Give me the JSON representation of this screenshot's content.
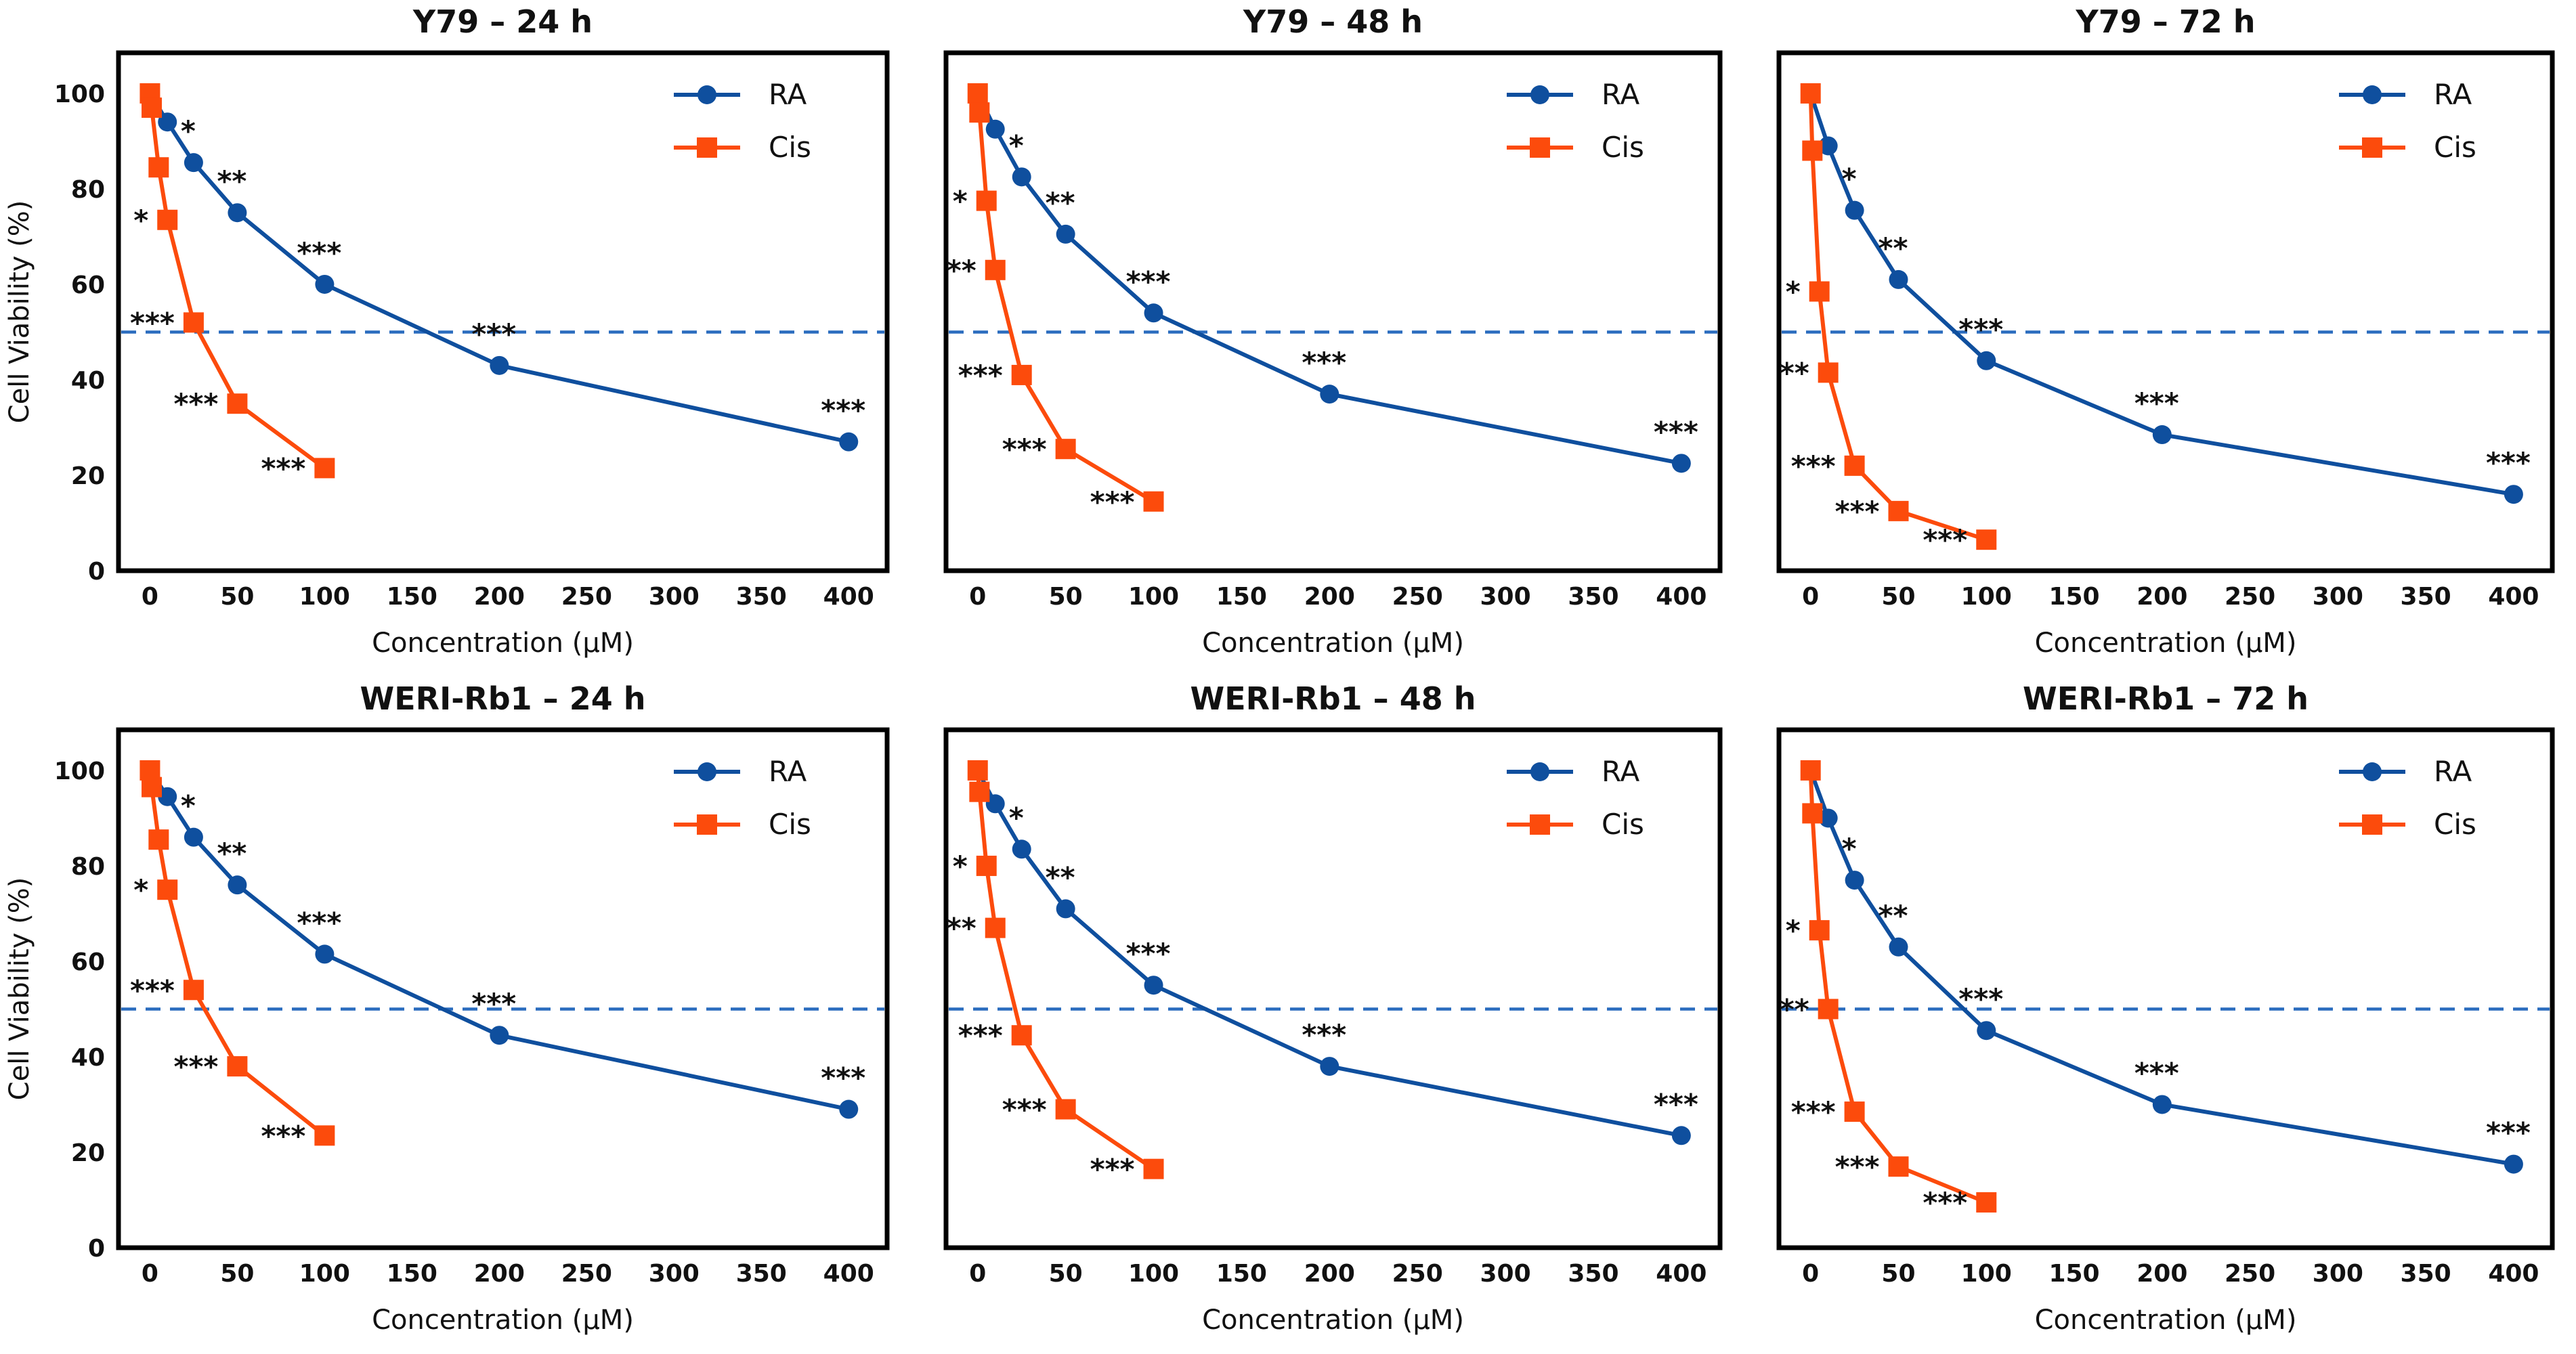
{
  "figure": {
    "description": "Cell viability dose-response curves for retinoblastoma cell lines",
    "rows": [
      "Y79",
      "WERI-Rb1"
    ],
    "timepoints": [
      "24 h",
      "48 h",
      "72 h"
    ],
    "colors": {
      "ra_blue": "#0f4f9e",
      "cis_orange": "#fc4b0c",
      "reference_dashed_blue": "#2a6cbe",
      "frame_black": "#000000"
    }
  },
  "chart_data": [
    {
      "type": "line",
      "title": "Y79 – 24 h",
      "xlabel": "Concentration (µM)",
      "ylabel": "Cell Viability (%)",
      "x_ticks": [
        0,
        50,
        100,
        150,
        200,
        250,
        300,
        350,
        400
      ],
      "y_ticks": [
        0,
        20,
        40,
        60,
        80,
        100
      ],
      "xlim": [
        -18,
        422
      ],
      "ylim": [
        0,
        108.5
      ],
      "grid": false,
      "legend_position": "upper-right",
      "show_y_axis": true,
      "reference_line": {
        "y": 50,
        "style": "dashed",
        "color": "#2a6cbe"
      },
      "series": [
        {
          "name": "RA",
          "color": "#0f4f9e",
          "marker": "circle",
          "x": [
            0,
            10,
            25,
            50,
            100,
            200,
            400
          ],
          "y": [
            100,
            94,
            85.5,
            75,
            60,
            43,
            27
          ],
          "significance": [
            "",
            "",
            "*",
            "**",
            "***",
            "***",
            "***"
          ]
        },
        {
          "name": "Cis",
          "color": "#fc4b0c",
          "marker": "square",
          "x": [
            0,
            1,
            5,
            10,
            25,
            50,
            100
          ],
          "y": [
            100,
            97,
            84.5,
            73.5,
            52,
            35,
            21.5
          ],
          "significance": [
            "",
            "",
            "",
            "*",
            "***",
            "***",
            "***"
          ]
        }
      ]
    },
    {
      "type": "line",
      "title": "Y79 – 48 h",
      "xlabel": "Concentration (µM)",
      "ylabel": "Cell Viability (%)",
      "x_ticks": [
        0,
        50,
        100,
        150,
        200,
        250,
        300,
        350,
        400
      ],
      "y_ticks": [
        0,
        20,
        40,
        60,
        80,
        100
      ],
      "xlim": [
        -18,
        422
      ],
      "ylim": [
        0,
        108.5
      ],
      "grid": false,
      "legend_position": "upper-right",
      "show_y_axis": false,
      "reference_line": {
        "y": 50,
        "style": "dashed",
        "color": "#2a6cbe"
      },
      "series": [
        {
          "name": "RA",
          "color": "#0f4f9e",
          "marker": "circle",
          "x": [
            0,
            10,
            25,
            50,
            100,
            200,
            400
          ],
          "y": [
            100,
            92.5,
            82.5,
            70.5,
            54,
            37,
            22.5
          ],
          "significance": [
            "",
            "",
            "*",
            "**",
            "***",
            "***",
            "***"
          ]
        },
        {
          "name": "Cis",
          "color": "#fc4b0c",
          "marker": "square",
          "x": [
            0,
            1,
            5,
            10,
            25,
            50,
            100
          ],
          "y": [
            100,
            96,
            77.5,
            63,
            41,
            25.5,
            14.5
          ],
          "significance": [
            "",
            "",
            "*",
            "**",
            "***",
            "***",
            "***"
          ]
        }
      ]
    },
    {
      "type": "line",
      "title": "Y79 – 72 h",
      "xlabel": "Concentration (µM)",
      "ylabel": "Cell Viability (%)",
      "x_ticks": [
        0,
        50,
        100,
        150,
        200,
        250,
        300,
        350,
        400
      ],
      "y_ticks": [
        0,
        20,
        40,
        60,
        80,
        100
      ],
      "xlim": [
        -18,
        422
      ],
      "ylim": [
        0,
        108.5
      ],
      "grid": false,
      "legend_position": "upper-right",
      "show_y_axis": false,
      "reference_line": {
        "y": 50,
        "style": "dashed",
        "color": "#2a6cbe"
      },
      "series": [
        {
          "name": "RA",
          "color": "#0f4f9e",
          "marker": "circle",
          "x": [
            0,
            10,
            25,
            50,
            100,
            200,
            400
          ],
          "y": [
            100,
            89,
            75.5,
            61,
            44,
            28.5,
            16
          ],
          "significance": [
            "",
            "",
            "*",
            "**",
            "***",
            "***",
            "***"
          ]
        },
        {
          "name": "Cis",
          "color": "#fc4b0c",
          "marker": "square",
          "x": [
            0,
            1,
            5,
            10,
            25,
            50,
            100
          ],
          "y": [
            100,
            88,
            58.5,
            41.5,
            22,
            12.5,
            6.5
          ],
          "significance": [
            "",
            "",
            "*",
            "**",
            "***",
            "***",
            "***"
          ]
        }
      ]
    },
    {
      "type": "line",
      "title": "WERI-Rb1 – 24 h",
      "xlabel": "Concentration (µM)",
      "ylabel": "Cell Viability (%)",
      "x_ticks": [
        0,
        50,
        100,
        150,
        200,
        250,
        300,
        350,
        400
      ],
      "y_ticks": [
        0,
        20,
        40,
        60,
        80,
        100
      ],
      "xlim": [
        -18,
        422
      ],
      "ylim": [
        0,
        108.5
      ],
      "grid": false,
      "legend_position": "upper-right",
      "show_y_axis": true,
      "reference_line": {
        "y": 50,
        "style": "dashed",
        "color": "#2a6cbe"
      },
      "series": [
        {
          "name": "RA",
          "color": "#0f4f9e",
          "marker": "circle",
          "x": [
            0,
            10,
            25,
            50,
            100,
            200,
            400
          ],
          "y": [
            100,
            94.5,
            86,
            76,
            61.5,
            44.5,
            29
          ],
          "significance": [
            "",
            "",
            "*",
            "**",
            "***",
            "***",
            "***"
          ]
        },
        {
          "name": "Cis",
          "color": "#fc4b0c",
          "marker": "square",
          "x": [
            0,
            1,
            5,
            10,
            25,
            50,
            100
          ],
          "y": [
            100,
            96.5,
            85.5,
            75,
            54,
            38,
            23.5
          ],
          "significance": [
            "",
            "",
            "",
            "*",
            "***",
            "***",
            "***"
          ]
        }
      ]
    },
    {
      "type": "line",
      "title": "WERI-Rb1 – 48 h",
      "xlabel": "Concentration (µM)",
      "ylabel": "Cell Viability (%)",
      "x_ticks": [
        0,
        50,
        100,
        150,
        200,
        250,
        300,
        350,
        400
      ],
      "y_ticks": [
        0,
        20,
        40,
        60,
        80,
        100
      ],
      "xlim": [
        -18,
        422
      ],
      "ylim": [
        0,
        108.5
      ],
      "grid": false,
      "legend_position": "upper-right",
      "show_y_axis": false,
      "reference_line": {
        "y": 50,
        "style": "dashed",
        "color": "#2a6cbe"
      },
      "series": [
        {
          "name": "RA",
          "color": "#0f4f9e",
          "marker": "circle",
          "x": [
            0,
            10,
            25,
            50,
            100,
            200,
            400
          ],
          "y": [
            100,
            93,
            83.5,
            71,
            55,
            38,
            23.5
          ],
          "significance": [
            "",
            "",
            "*",
            "**",
            "***",
            "***",
            "***"
          ]
        },
        {
          "name": "Cis",
          "color": "#fc4b0c",
          "marker": "square",
          "x": [
            0,
            1,
            5,
            10,
            25,
            50,
            100
          ],
          "y": [
            100,
            95.5,
            80,
            67,
            44.5,
            29,
            16.5
          ],
          "significance": [
            "",
            "",
            "*",
            "**",
            "***",
            "***",
            "***"
          ]
        }
      ]
    },
    {
      "type": "line",
      "title": "WERI-Rb1 – 72 h",
      "xlabel": "Concentration (µM)",
      "ylabel": "Cell Viability (%)",
      "x_ticks": [
        0,
        50,
        100,
        150,
        200,
        250,
        300,
        350,
        400
      ],
      "y_ticks": [
        0,
        20,
        40,
        60,
        80,
        100
      ],
      "xlim": [
        -18,
        422
      ],
      "ylim": [
        0,
        108.5
      ],
      "grid": false,
      "legend_position": "upper-right",
      "show_y_axis": false,
      "reference_line": {
        "y": 50,
        "style": "dashed",
        "color": "#2a6cbe"
      },
      "series": [
        {
          "name": "RA",
          "color": "#0f4f9e",
          "marker": "circle",
          "x": [
            0,
            10,
            25,
            50,
            100,
            200,
            400
          ],
          "y": [
            100,
            90,
            77,
            63,
            45.5,
            30,
            17.5
          ],
          "significance": [
            "",
            "",
            "*",
            "**",
            "***",
            "***",
            "***"
          ]
        },
        {
          "name": "Cis",
          "color": "#fc4b0c",
          "marker": "square",
          "x": [
            0,
            1,
            5,
            10,
            25,
            50,
            100
          ],
          "y": [
            100,
            91,
            66.5,
            50,
            28.5,
            17,
            9.5
          ],
          "significance": [
            "",
            "",
            "*",
            "**",
            "***",
            "***",
            "***"
          ]
        }
      ]
    }
  ]
}
